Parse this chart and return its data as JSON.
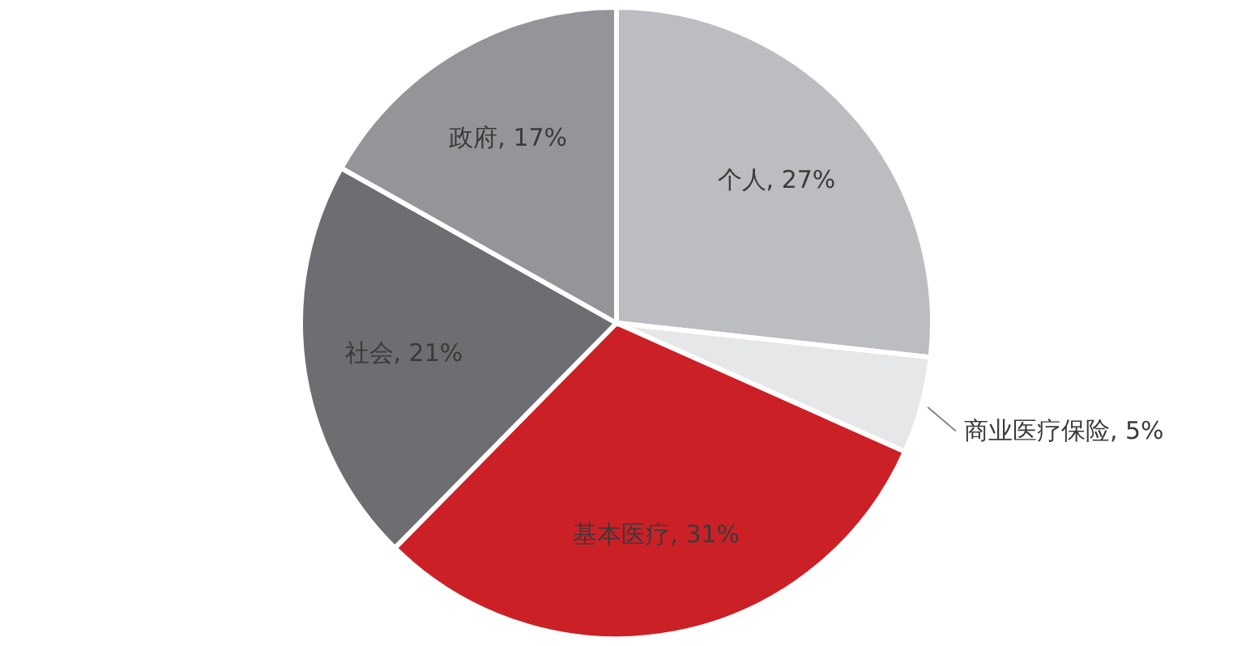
{
  "chart_data": {
    "type": "pie",
    "categories": [
      "个人",
      "商业医疗保险",
      "基本医疗",
      "社会",
      "政府"
    ],
    "values": [
      27,
      5,
      31,
      21,
      17
    ],
    "value_labels": [
      "27%",
      "5%",
      "31%",
      "21%",
      "17%"
    ],
    "colors": [
      "#bcbdc0",
      "#e6e7e8",
      "#cc2027",
      "#6d6e71",
      "#939598"
    ]
  }
}
